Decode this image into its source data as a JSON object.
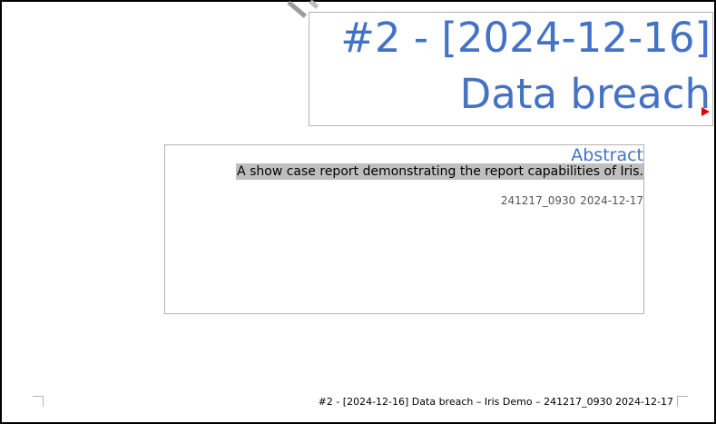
{
  "document": {
    "title_line_1": "#2 - [2024-12-16]",
    "title_line_2": "Data breach",
    "abstract_heading": "Abstract",
    "abstract_text": "A show case report demonstrating the report capabilities of Iris.",
    "meta_version": "241217_0930",
    "meta_date": "2024-12-17"
  },
  "footer": {
    "text": "#2 - [2024-12-16] Data breach – Iris Demo – 241217_0930 2024-12-17"
  },
  "colors": {
    "heading_blue": "#4472c4",
    "highlight_gray": "#bfbfbf",
    "frame_border": "#b3b3b3",
    "overflow_marker": "#e00000"
  },
  "icons": {
    "overflow": "text-overflow-triangle-icon"
  }
}
